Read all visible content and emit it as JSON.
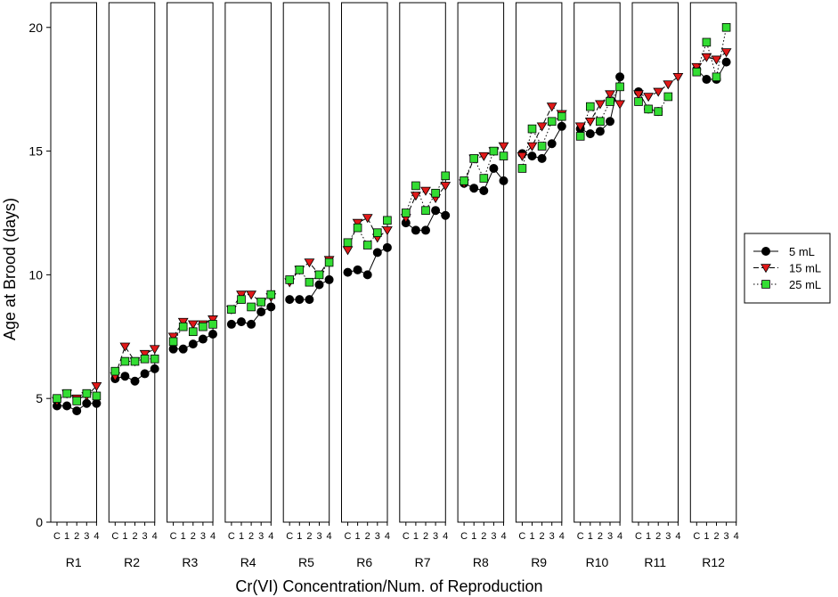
{
  "chart_data": {
    "type": "line",
    "ylabel": "Age at Brood (days)",
    "xlabel": "Cr(VI) Concentration/Num. of Reproduction",
    "ylim": [
      0,
      21
    ],
    "yticks": [
      0,
      5,
      10,
      15,
      20
    ],
    "x_tick_labels": [
      "C",
      "1",
      "2",
      "3",
      "4"
    ],
    "legend_position": "right",
    "panels": [
      {
        "label": "R1",
        "series": [
          {
            "name": "5 mL",
            "values": [
              4.7,
              4.7,
              4.5,
              4.8,
              4.8
            ]
          },
          {
            "name": "15 mL",
            "values": [
              4.9,
              5.2,
              5.0,
              5.1,
              5.5
            ]
          },
          {
            "name": "25 mL",
            "values": [
              5.0,
              5.2,
              4.9,
              5.2,
              5.1
            ]
          }
        ]
      },
      {
        "label": "R2",
        "series": [
          {
            "name": "5 mL",
            "values": [
              5.8,
              5.9,
              5.7,
              6.0,
              6.2
            ]
          },
          {
            "name": "15 mL",
            "values": [
              5.9,
              7.1,
              6.5,
              6.8,
              7.0
            ]
          },
          {
            "name": "25 mL",
            "values": [
              6.1,
              6.5,
              6.5,
              6.6,
              6.6
            ]
          }
        ]
      },
      {
        "label": "R3",
        "series": [
          {
            "name": "5 mL",
            "values": [
              7.0,
              7.0,
              7.2,
              7.4,
              7.6
            ]
          },
          {
            "name": "15 mL",
            "values": [
              7.5,
              8.1,
              8.0,
              8.0,
              8.2
            ]
          },
          {
            "name": "25 mL",
            "values": [
              7.3,
              7.9,
              7.7,
              7.9,
              8.0
            ]
          }
        ]
      },
      {
        "label": "R4",
        "series": [
          {
            "name": "5 mL",
            "values": [
              8.0,
              8.1,
              8.0,
              8.5,
              8.7
            ]
          },
          {
            "name": "15 mL",
            "values": [
              8.6,
              9.2,
              9.2,
              8.9,
              9.1
            ]
          },
          {
            "name": "25 mL",
            "values": [
              8.6,
              9.0,
              8.7,
              8.9,
              9.2
            ]
          }
        ]
      },
      {
        "label": "R5",
        "series": [
          {
            "name": "5 mL",
            "values": [
              9.0,
              9.0,
              9.0,
              9.6,
              9.8
            ]
          },
          {
            "name": "15 mL",
            "values": [
              9.7,
              10.2,
              10.5,
              10.0,
              10.6
            ]
          },
          {
            "name": "25 mL",
            "values": [
              9.8,
              10.2,
              9.7,
              10.0,
              10.5
            ]
          }
        ]
      },
      {
        "label": "R6",
        "series": [
          {
            "name": "5 mL",
            "values": [
              10.1,
              10.2,
              10.0,
              10.9,
              11.1
            ]
          },
          {
            "name": "15 mL",
            "values": [
              11.0,
              12.1,
              12.3,
              11.5,
              11.8
            ]
          },
          {
            "name": "25 mL",
            "values": [
              11.3,
              11.9,
              11.2,
              11.7,
              12.2
            ]
          }
        ]
      },
      {
        "label": "R7",
        "series": [
          {
            "name": "5 mL",
            "values": [
              12.1,
              11.8,
              11.8,
              12.6,
              12.4
            ]
          },
          {
            "name": "15 mL",
            "values": [
              12.3,
              13.2,
              13.4,
              13.1,
              13.6
            ]
          },
          {
            "name": "25 mL",
            "values": [
              12.5,
              13.6,
              12.6,
              13.3,
              14.0
            ]
          }
        ]
      },
      {
        "label": "R8",
        "series": [
          {
            "name": "5 mL",
            "values": [
              13.7,
              13.5,
              13.4,
              14.3,
              13.8
            ]
          },
          {
            "name": "15 mL",
            "values": [
              13.7,
              14.7,
              14.8,
              15.0,
              15.2
            ]
          },
          {
            "name": "25 mL",
            "values": [
              13.8,
              14.7,
              13.9,
              15.0,
              14.8
            ]
          }
        ]
      },
      {
        "label": "R9",
        "series": [
          {
            "name": "5 mL",
            "values": [
              14.9,
              14.8,
              14.7,
              15.3,
              16.0
            ]
          },
          {
            "name": "15 mL",
            "values": [
              14.8,
              15.2,
              16.0,
              16.8,
              16.5
            ]
          },
          {
            "name": "25 mL",
            "values": [
              14.3,
              15.9,
              15.2,
              16.2,
              16.4
            ]
          }
        ]
      },
      {
        "label": "R10",
        "series": [
          {
            "name": "5 mL",
            "values": [
              15.9,
              15.7,
              15.8,
              16.2,
              18.0
            ]
          },
          {
            "name": "15 mL",
            "values": [
              16.0,
              16.2,
              16.9,
              17.3,
              16.9
            ]
          },
          {
            "name": "25 mL",
            "values": [
              15.6,
              16.8,
              16.2,
              17.0,
              17.6
            ]
          }
        ]
      },
      {
        "label": "R11",
        "series": [
          {
            "name": "5 mL",
            "values": [
              17.4,
              16.7,
              16.6
            ]
          },
          {
            "name": "15 mL",
            "values": [
              17.3,
              17.2,
              17.4,
              17.7,
              18.0
            ]
          },
          {
            "name": "25 mL",
            "values": [
              17.0,
              16.7,
              16.6,
              17.2
            ]
          }
        ]
      },
      {
        "label": "R12",
        "series": [
          {
            "name": "5 mL",
            "values": [
              18.3,
              17.9,
              17.9,
              18.6
            ]
          },
          {
            "name": "15 mL",
            "values": [
              18.4,
              18.8,
              18.7,
              19.0
            ]
          },
          {
            "name": "25 mL",
            "values": [
              18.2,
              19.4,
              18.0,
              20.0
            ]
          }
        ]
      }
    ],
    "series_styles": [
      {
        "name": "5 mL",
        "marker": "circle",
        "fill": "#000000",
        "line": "solid"
      },
      {
        "name": "15 mL",
        "marker": "triangle-down",
        "fill": "#e01919",
        "line": "dashed"
      },
      {
        "name": "25 mL",
        "marker": "square",
        "fill": "#33dd33",
        "line": "dotted"
      }
    ]
  }
}
